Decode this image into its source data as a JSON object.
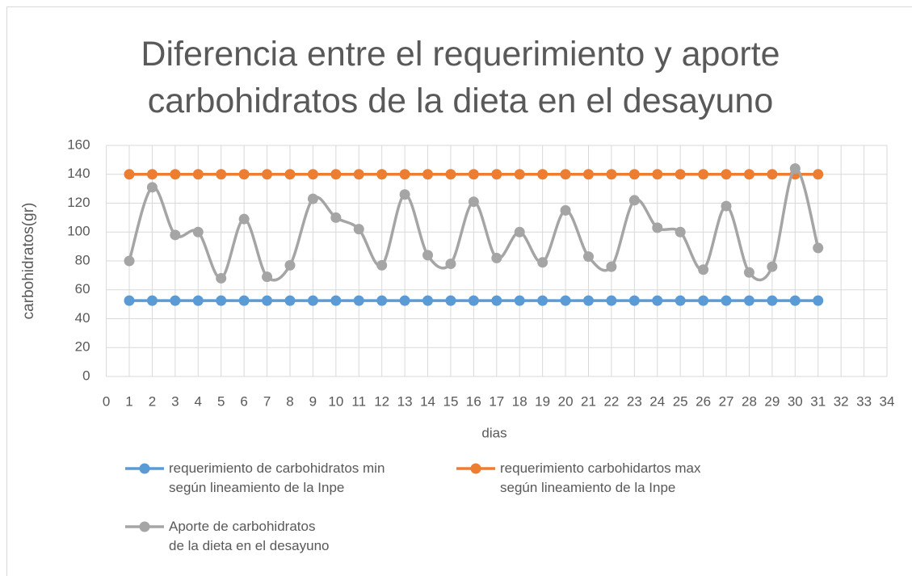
{
  "chart_data": {
    "type": "line",
    "smooth": true,
    "title": "Diferencia entre el requerimiento y aporte\ncarbohidratos de la dieta en el desayuno",
    "x_label": "dias",
    "y_label": "carbohidratos(gr)",
    "x": [
      1,
      2,
      3,
      4,
      5,
      6,
      7,
      8,
      9,
      10,
      11,
      12,
      13,
      14,
      15,
      16,
      17,
      18,
      19,
      20,
      21,
      22,
      23,
      24,
      25,
      26,
      27,
      28,
      29,
      30,
      31
    ],
    "series": [
      {
        "name": "requerimiento de carbohidratos min\nsegún lineamiento de la Inpe",
        "color": "#5b9bd5",
        "values": [
          52.5,
          52.5,
          52.5,
          52.5,
          52.5,
          52.5,
          52.5,
          52.5,
          52.5,
          52.5,
          52.5,
          52.5,
          52.5,
          52.5,
          52.5,
          52.5,
          52.5,
          52.5,
          52.5,
          52.5,
          52.5,
          52.5,
          52.5,
          52.5,
          52.5,
          52.5,
          52.5,
          52.5,
          52.5,
          52.5,
          52.5
        ]
      },
      {
        "name": "requerimiento carbohidartos max\nsegún lineamiento de la Inpe",
        "color": "#ed7d31",
        "values": [
          140,
          140,
          140,
          140,
          140,
          140,
          140,
          140,
          140,
          140,
          140,
          140,
          140,
          140,
          140,
          140,
          140,
          140,
          140,
          140,
          140,
          140,
          140,
          140,
          140,
          140,
          140,
          140,
          140,
          140,
          140
        ]
      },
      {
        "name": "Aporte de carbohidratos\nde la dieta en el desayuno",
        "color": "#a5a5a5",
        "values": [
          80,
          131,
          98,
          100,
          68,
          109,
          69,
          77,
          123,
          110,
          102,
          77,
          126,
          84,
          78,
          121,
          82,
          100,
          79,
          115,
          83,
          76,
          122,
          103,
          100,
          74,
          118,
          72,
          76,
          144,
          89
        ]
      }
    ],
    "xlim": [
      0,
      34
    ],
    "xticks": [
      0,
      1,
      2,
      3,
      4,
      5,
      6,
      7,
      8,
      9,
      10,
      11,
      12,
      13,
      14,
      15,
      16,
      17,
      18,
      19,
      20,
      21,
      22,
      23,
      24,
      25,
      26,
      27,
      28,
      29,
      30,
      31,
      32,
      33,
      34
    ],
    "ylim": [
      0,
      160
    ],
    "yticks": [
      0,
      20,
      40,
      60,
      80,
      100,
      120,
      140,
      160
    ],
    "grid": true,
    "legend": "bottom"
  }
}
